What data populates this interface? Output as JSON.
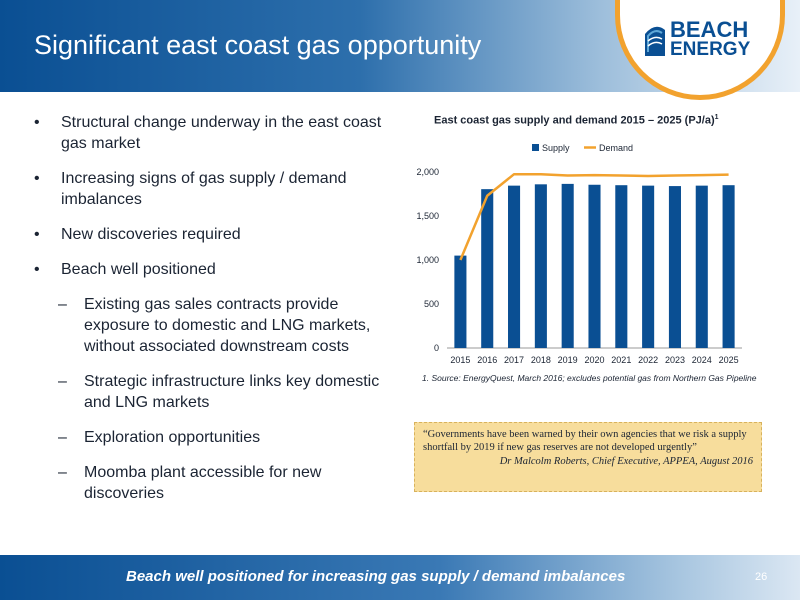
{
  "slide": {
    "title": "Significant east coast gas opportunity",
    "page_number": "26",
    "footer": "Beach well positioned for increasing gas supply / demand imbalances"
  },
  "logo": {
    "line1": "BEACH",
    "line2": "ENERGY"
  },
  "bullets": [
    "Structural change underway in the east coast gas market",
    "Increasing signs of gas supply / demand imbalances",
    "New discoveries required",
    "Beach well positioned"
  ],
  "sub_bullets": [
    "Existing gas sales contracts provide exposure to domestic and LNG markets, without associated downstream costs",
    "Strategic infrastructure links key domestic and LNG markets",
    "Exploration opportunities",
    "Moomba plant accessible for new discoveries"
  ],
  "bullet_symbol": "•",
  "sub_bullet_symbol": "–",
  "chart_data": {
    "type": "bar",
    "title": "East coast gas supply and demand 2015 – 2025 (PJ/a)",
    "title_superscript": "1",
    "categories": [
      "2015",
      "2016",
      "2017",
      "2018",
      "2019",
      "2020",
      "2021",
      "2022",
      "2023",
      "2024",
      "2025"
    ],
    "series": [
      {
        "name": "Supply",
        "type": "bar",
        "color": "#0a4f93",
        "values": [
          1050,
          1805,
          1845,
          1860,
          1865,
          1855,
          1850,
          1845,
          1840,
          1845,
          1850
        ]
      },
      {
        "name": "Demand",
        "type": "line",
        "color": "#f2a22e",
        "values": [
          1000,
          1730,
          1975,
          1975,
          1960,
          1965,
          1960,
          1955,
          1960,
          1965,
          1970
        ]
      }
    ],
    "yticks": [
      "0",
      "500",
      "1,000",
      "1,500",
      "2,000"
    ],
    "ylim": [
      0,
      2000
    ],
    "legend_position": "top",
    "source_note": "1. Source: EnergyQuest, March 2016; excludes potential gas from Northern Gas Pipeline"
  },
  "quote": {
    "text": "“Governments have been warned by their own agencies that we risk a supply shortfall by 2019 if new gas reserves are not developed urgently”",
    "attribution": "Dr Malcolm Roberts, Chief Executive, APPEA, August 2016"
  }
}
